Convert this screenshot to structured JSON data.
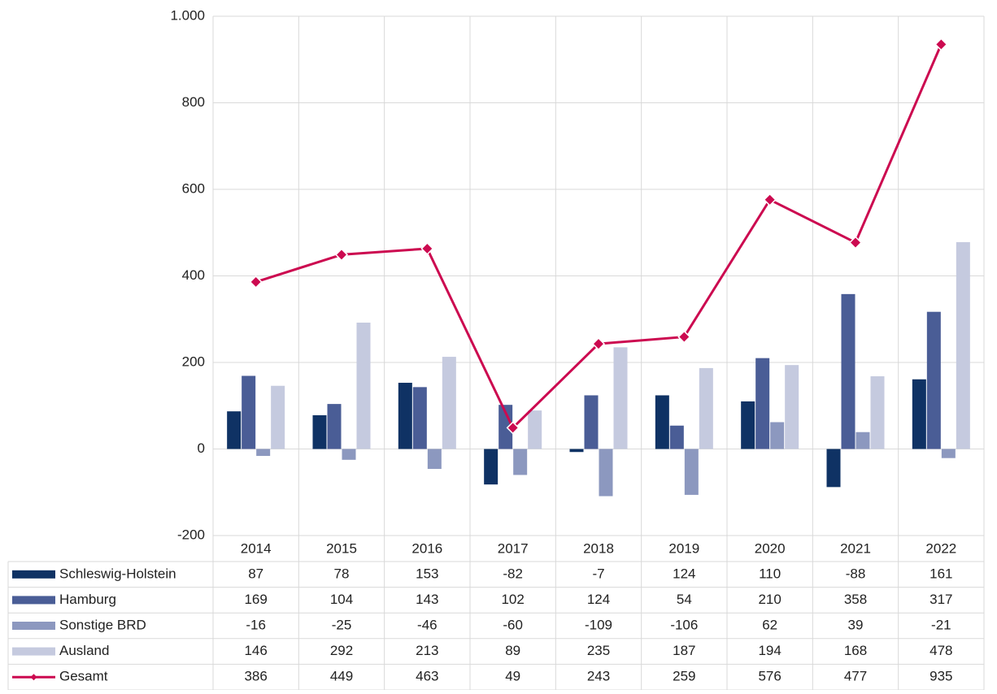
{
  "chart_data": {
    "type": "bar",
    "categories": [
      "2014",
      "2015",
      "2016",
      "2017",
      "2018",
      "2019",
      "2020",
      "2021",
      "2022"
    ],
    "series": [
      {
        "name": "Schleswig-Holstein",
        "color": "#0f3264",
        "values": [
          87,
          78,
          153,
          -82,
          -7,
          124,
          110,
          -88,
          161
        ]
      },
      {
        "name": "Hamburg",
        "color": "#4a5d96",
        "values": [
          169,
          104,
          143,
          102,
          124,
          54,
          210,
          358,
          317
        ]
      },
      {
        "name": "Sonstige BRD",
        "color": "#8c98bf",
        "values": [
          -16,
          -25,
          -46,
          -60,
          -109,
          -106,
          62,
          39,
          -21
        ]
      },
      {
        "name": "Ausland",
        "color": "#c5cadf",
        "values": [
          146,
          292,
          213,
          89,
          235,
          187,
          194,
          168,
          478
        ]
      },
      {
        "name": "Gesamt",
        "color": "#cc0a50",
        "type": "line",
        "values": [
          386,
          449,
          463,
          49,
          243,
          259,
          576,
          477,
          935
        ]
      }
    ],
    "ylim": [
      -200,
      1000
    ],
    "yticks": [
      -200,
      0,
      200,
      400,
      600,
      800,
      {
        "value": 1000,
        "label": "1.000"
      }
    ],
    "grid": true,
    "data_table": true
  }
}
